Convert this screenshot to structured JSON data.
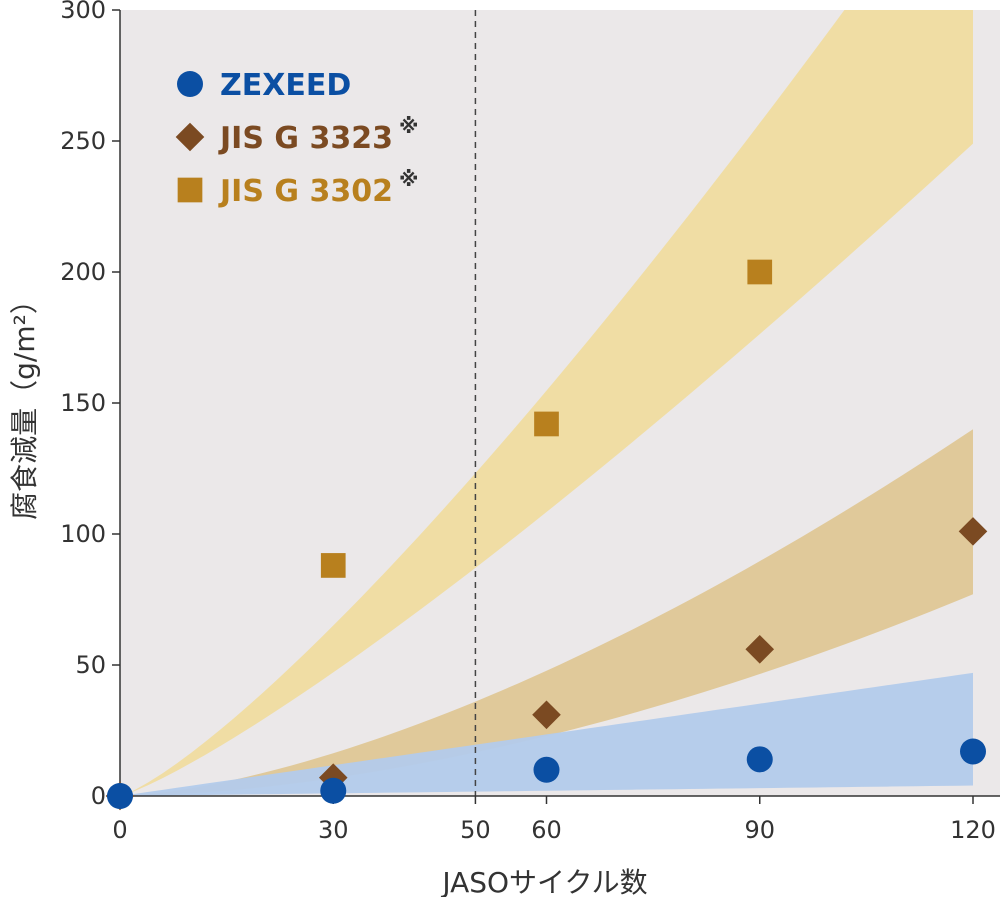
{
  "chart_data": {
    "type": "scatter",
    "xlabel": "JASOサイクル数",
    "ylabel": "腐食減量（g/m²）",
    "xlim": [
      0,
      120
    ],
    "ylim": [
      0,
      300
    ],
    "x_ticks": [
      0,
      30,
      50,
      60,
      90,
      120
    ],
    "y_ticks": [
      0,
      50,
      100,
      150,
      200,
      250,
      300
    ],
    "reference_line_x": 50,
    "grid": false,
    "legend_position": "top-left",
    "background_color": "#ebe8e9",
    "series": [
      {
        "name": "ZEXEED",
        "marker": "circle",
        "color": "#0b4fa3",
        "text_color": "#0b4fa3",
        "note": "",
        "x": [
          0,
          30,
          60,
          90,
          120
        ],
        "y": [
          0,
          2,
          10,
          14,
          17
        ],
        "band": {
          "color": "#b3cbeb",
          "lower_end": 4,
          "upper_end": 47,
          "lower_exp": 1.0,
          "upper_exp": 1.0
        }
      },
      {
        "name": "JIS G 3323",
        "marker": "diamond",
        "color": "#7b4a22",
        "text_color": "#7b4a22",
        "note": "※",
        "x": [
          0,
          30,
          60,
          90,
          120
        ],
        "y": [
          0,
          7,
          31,
          56,
          101
        ],
        "band": {
          "color": "#dfc796",
          "lower_end": 77,
          "upper_end": 140,
          "lower_exp": 1.75,
          "upper_exp": 1.55
        }
      },
      {
        "name": "JIS G 3302",
        "marker": "square",
        "color": "#b8801e",
        "text_color": "#b8801e",
        "note": "※",
        "x": [
          30,
          60,
          90,
          120
        ],
        "y": [
          88,
          142,
          200,
          null
        ],
        "band": {
          "color": "#f0dca0",
          "lower_end": 249,
          "upper_end": 368,
          "lower_exp": 1.2,
          "upper_exp": 1.25
        }
      }
    ]
  }
}
